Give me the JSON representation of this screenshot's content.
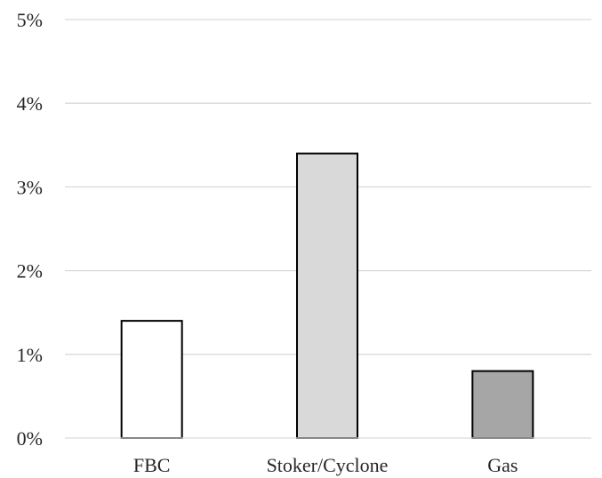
{
  "chart_data": {
    "type": "bar",
    "title": "",
    "xlabel": "",
    "ylabel": "",
    "categories": [
      "FBC",
      "Stoker/Cyclone",
      "Gas"
    ],
    "values": [
      1.4,
      3.4,
      0.8
    ],
    "value_unit": "%",
    "ylim": [
      0,
      5
    ],
    "yticks": [
      "0%",
      "1%",
      "2%",
      "3%",
      "4%",
      "5%"
    ],
    "grid": true,
    "legend": "none",
    "bar_colors": [
      "#ffffff",
      "#d9d9d9",
      "#a6a6a6"
    ],
    "bar_edge_color": "#000000",
    "gridline_color": "#d9d9d9"
  }
}
